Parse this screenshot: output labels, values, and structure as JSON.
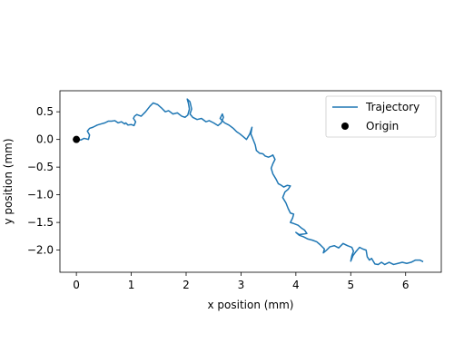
{
  "chart_data": {
    "type": "line",
    "title": "",
    "xlabel": "x position (mm)",
    "ylabel": "y position (mm)",
    "xlim": [
      -0.3,
      6.65
    ],
    "ylim": [
      -2.4,
      0.88
    ],
    "xticks": [
      0,
      1,
      2,
      3,
      4,
      5,
      6
    ],
    "yticks": [
      0.5,
      0.0,
      -0.5,
      -1.0,
      -1.5,
      -2.0
    ],
    "xtick_labels": [
      "0",
      "1",
      "2",
      "3",
      "4",
      "5",
      "6"
    ],
    "ytick_labels": [
      "0.5",
      "0.0",
      "−0.5",
      "−1.0",
      "−1.5",
      "−2.0"
    ],
    "grid": false,
    "legend_position": "top-right",
    "series": [
      {
        "name": "Trajectory",
        "kind": "line",
        "color": "#1f77b4",
        "x": [
          0.0,
          0.08,
          0.14,
          0.22,
          0.24,
          0.2,
          0.24,
          0.3,
          0.38,
          0.45,
          0.52,
          0.58,
          0.64,
          0.7,
          0.76,
          0.82,
          0.88,
          0.9,
          0.94,
          1.0,
          1.05,
          1.08,
          1.04,
          1.06,
          1.1,
          1.18,
          1.26,
          1.34,
          1.4,
          1.48,
          1.55,
          1.62,
          1.68,
          1.76,
          1.84,
          1.92,
          1.98,
          2.03,
          2.06,
          2.04,
          2.02,
          2.07,
          2.1,
          2.07,
          2.12,
          2.2,
          2.28,
          2.36,
          2.42,
          2.5,
          2.58,
          2.64,
          2.68,
          2.66,
          2.62,
          2.7,
          2.78,
          2.86,
          2.92,
          2.98,
          3.04,
          3.1,
          3.16,
          3.2,
          3.18,
          3.22,
          3.26,
          3.28,
          3.34,
          3.4,
          3.44,
          3.5,
          3.55,
          3.58,
          3.62,
          3.58,
          3.55,
          3.58,
          3.64,
          3.68,
          3.72,
          3.78,
          3.84,
          3.9,
          3.86,
          3.8,
          3.76,
          3.82,
          3.86,
          3.9,
          3.96,
          3.94,
          3.9,
          3.96,
          4.04,
          4.1,
          4.16,
          4.2,
          4.14,
          4.06,
          4.0,
          4.06,
          4.14,
          4.22,
          4.3,
          4.38,
          4.44,
          4.52,
          4.5,
          4.56,
          4.62,
          4.7,
          4.78,
          4.86,
          4.94,
          5.02,
          5.05,
          5.02,
          5.0,
          5.04,
          5.1,
          5.16,
          5.22,
          5.28,
          5.3,
          5.34,
          5.38,
          5.44,
          5.5,
          5.56,
          5.62,
          5.7,
          5.78,
          5.86,
          5.94,
          6.02,
          6.1,
          6.18,
          6.26,
          6.32
        ],
        "y": [
          0.0,
          -0.01,
          0.02,
          0.0,
          0.08,
          0.15,
          0.2,
          0.22,
          0.26,
          0.28,
          0.3,
          0.33,
          0.33,
          0.34,
          0.3,
          0.32,
          0.28,
          0.3,
          0.26,
          0.27,
          0.25,
          0.32,
          0.38,
          0.42,
          0.45,
          0.42,
          0.5,
          0.6,
          0.66,
          0.63,
          0.57,
          0.5,
          0.52,
          0.46,
          0.48,
          0.42,
          0.4,
          0.44,
          0.55,
          0.66,
          0.73,
          0.68,
          0.55,
          0.46,
          0.4,
          0.36,
          0.38,
          0.32,
          0.34,
          0.3,
          0.25,
          0.3,
          0.4,
          0.46,
          0.38,
          0.3,
          0.26,
          0.2,
          0.14,
          0.1,
          0.05,
          0.0,
          0.1,
          0.22,
          0.1,
          0.0,
          -0.1,
          -0.2,
          -0.25,
          -0.26,
          -0.3,
          -0.32,
          -0.3,
          -0.28,
          -0.36,
          -0.44,
          -0.52,
          -0.62,
          -0.72,
          -0.8,
          -0.82,
          -0.86,
          -0.83,
          -0.84,
          -0.9,
          -0.95,
          -1.05,
          -1.15,
          -1.25,
          -1.33,
          -1.35,
          -1.42,
          -1.5,
          -1.52,
          -1.55,
          -1.6,
          -1.64,
          -1.7,
          -1.71,
          -1.72,
          -1.68,
          -1.73,
          -1.76,
          -1.8,
          -1.82,
          -1.85,
          -1.9,
          -1.98,
          -2.05,
          -2.0,
          -1.94,
          -1.92,
          -1.96,
          -1.88,
          -1.92,
          -1.95,
          -2.02,
          -2.1,
          -2.2,
          -2.1,
          -2.02,
          -1.95,
          -1.98,
          -2.0,
          -2.12,
          -2.18,
          -2.15,
          -2.25,
          -2.26,
          -2.22,
          -2.26,
          -2.22,
          -2.26,
          -2.24,
          -2.22,
          -2.24,
          -2.22,
          -2.18,
          -2.18,
          -2.21
        ]
      },
      {
        "name": "Origin",
        "kind": "marker",
        "color": "#000000",
        "x": [
          0.0
        ],
        "y": [
          0.0
        ]
      }
    ]
  }
}
